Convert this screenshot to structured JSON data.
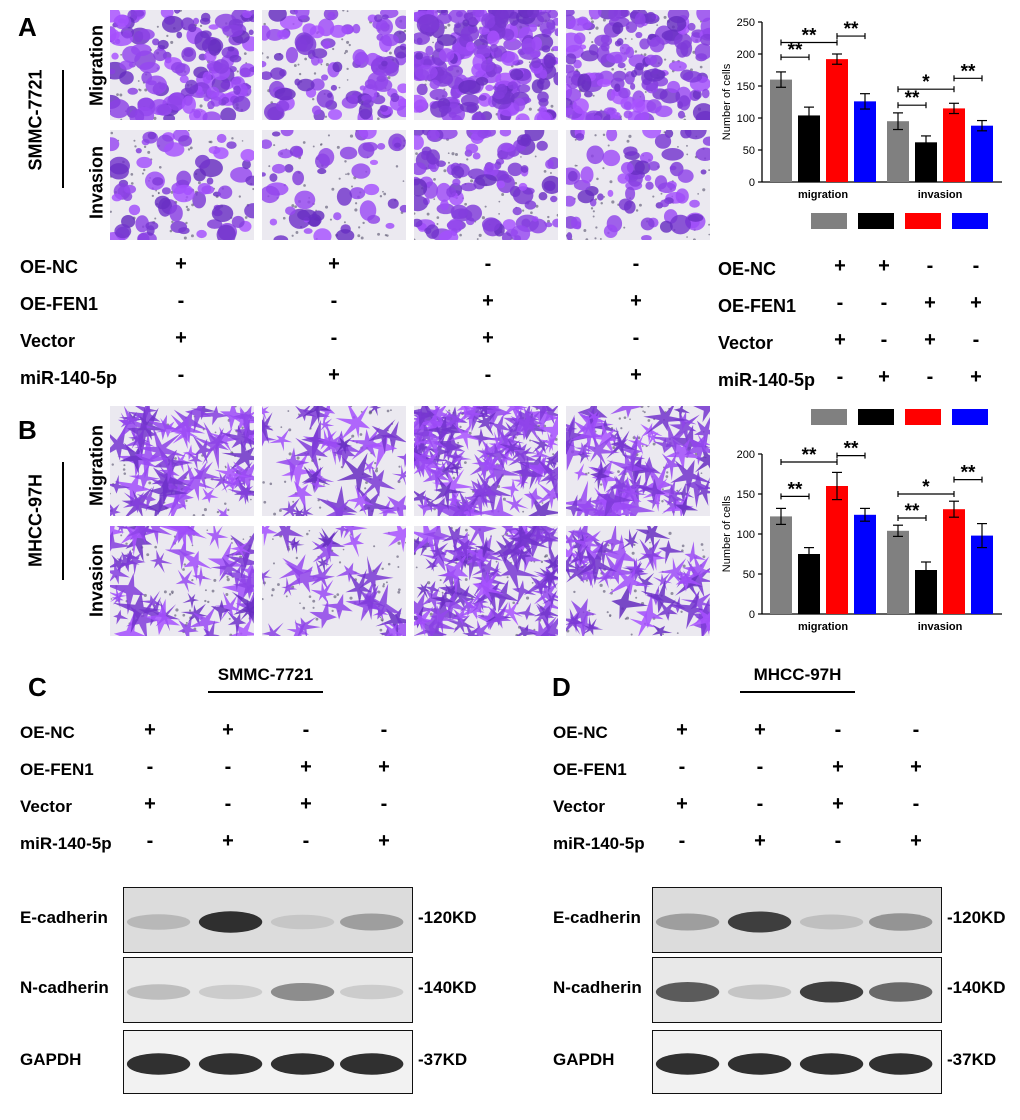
{
  "panels": {
    "A": "A",
    "B": "B",
    "C": "C",
    "D": "D"
  },
  "micro_labels": {
    "line_A": "SMMC-7721",
    "line_B": "MHCC-97H",
    "migration": "Migration",
    "invasion": "Invasion"
  },
  "conditions": {
    "rows": [
      "OE-NC",
      "OE-FEN1",
      "Vector",
      "miR-140-5p"
    ],
    "signs": [
      [
        "+",
        "+",
        "-",
        "-"
      ],
      [
        "-",
        "-",
        "+",
        "+"
      ],
      [
        "+",
        "-",
        "+",
        "-"
      ],
      [
        "-",
        "+",
        "-",
        "+"
      ]
    ]
  },
  "chart_colors": [
    "#808080",
    "#000000",
    "#ff0000",
    "#0000ff"
  ],
  "chart_data": [
    {
      "type": "bar",
      "panel": "A",
      "categories": [
        "migration",
        "invasion"
      ],
      "ylabel": "Number of cells",
      "ylim": [
        0,
        250
      ],
      "yticks": [
        "0",
        "50",
        "100",
        "150",
        "200",
        "250"
      ],
      "series": [
        {
          "values": [
            160,
            95
          ],
          "errors": [
            12,
            13
          ]
        },
        {
          "values": [
            104,
            62
          ],
          "errors": [
            13,
            10
          ]
        },
        {
          "values": [
            192,
            115
          ],
          "errors": [
            8,
            8
          ]
        },
        {
          "values": [
            126,
            88
          ],
          "errors": [
            12,
            8
          ]
        }
      ],
      "significance": [
        {
          "group": 0,
          "from": 0,
          "to": 1,
          "label": "**",
          "level": 195
        },
        {
          "group": 0,
          "from": 0,
          "to": 2,
          "label": "**",
          "level": 218
        },
        {
          "group": 0,
          "from": 2,
          "to": 3,
          "label": "**",
          "level": 228
        },
        {
          "group": 1,
          "from": 0,
          "to": 1,
          "label": "**",
          "level": 120
        },
        {
          "group": 1,
          "from": 0,
          "to": 2,
          "label": "*",
          "level": 145
        },
        {
          "group": 1,
          "from": 2,
          "to": 3,
          "label": "**",
          "level": 162
        }
      ]
    },
    {
      "type": "bar",
      "panel": "B",
      "categories": [
        "migration",
        "invasion"
      ],
      "ylabel": "Number of cells",
      "ylim": [
        0,
        200
      ],
      "yticks": [
        "0",
        "50",
        "100",
        "150",
        "200"
      ],
      "series": [
        {
          "values": [
            122,
            104
          ],
          "errors": [
            10,
            7
          ]
        },
        {
          "values": [
            75,
            55
          ],
          "errors": [
            8,
            10
          ]
        },
        {
          "values": [
            160,
            131
          ],
          "errors": [
            17,
            10
          ]
        },
        {
          "values": [
            124,
            98
          ],
          "errors": [
            8,
            15
          ]
        }
      ],
      "significance": [
        {
          "group": 0,
          "from": 0,
          "to": 1,
          "label": "**",
          "level": 147
        },
        {
          "group": 0,
          "from": 0,
          "to": 2,
          "label": "**",
          "level": 190
        },
        {
          "group": 0,
          "from": 2,
          "to": 3,
          "label": "**",
          "level": 198
        },
        {
          "group": 1,
          "from": 0,
          "to": 1,
          "label": "**",
          "level": 120
        },
        {
          "group": 1,
          "from": 0,
          "to": 2,
          "label": "*",
          "level": 150
        },
        {
          "group": 1,
          "from": 2,
          "to": 3,
          "label": "**",
          "level": 168
        }
      ]
    }
  ],
  "western": {
    "C": {
      "cell_line": "SMMC-7721"
    },
    "D": {
      "cell_line": "MHCC-97H"
    },
    "bands": [
      "E-cadherin",
      "N-cadherin",
      "GAPDH"
    ],
    "sizes": [
      "-120KD",
      "-140KD",
      "-37KD"
    ],
    "intensity_C": [
      [
        0.35,
        0.95,
        0.25,
        0.5
      ],
      [
        0.35,
        0.25,
        0.6,
        0.25
      ],
      [
        0.95,
        0.95,
        0.95,
        0.95
      ]
    ],
    "intensity_D": [
      [
        0.5,
        0.9,
        0.3,
        0.55
      ],
      [
        0.8,
        0.3,
        0.9,
        0.75
      ],
      [
        0.95,
        0.95,
        0.95,
        0.95
      ]
    ]
  }
}
